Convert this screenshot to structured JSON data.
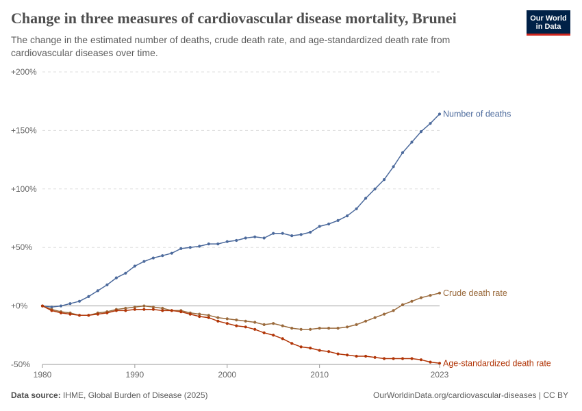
{
  "header": {
    "title": "Change in three measures of cardiovascular disease mortality, Brunei",
    "subtitle": "The change in the estimated number of deaths, crude death rate, and age-standardized death rate from cardiovascular diseases over time."
  },
  "logo": {
    "text": "Our World\nin Data",
    "background": "#002147",
    "accent": "#ce261e"
  },
  "footer": {
    "source_label": "Data source:",
    "source_text": "IHME, Global Burden of Disease (2025)",
    "url_license": "OurWorldinData.org/cardiovascular-diseases | CC BY"
  },
  "chart_data": {
    "type": "line",
    "title": "Change in three measures of cardiovascular disease mortality, Brunei",
    "xlabel": "",
    "ylabel": "",
    "xlim": [
      1980,
      2023
    ],
    "ylim": [
      -50,
      200
    ],
    "x_ticks": [
      {
        "value": 1980,
        "label": "1980"
      },
      {
        "value": 1990,
        "label": "1990"
      },
      {
        "value": 2000,
        "label": "2000"
      },
      {
        "value": 2010,
        "label": "2010"
      },
      {
        "value": 2023,
        "label": "2023"
      }
    ],
    "y_ticks": [
      {
        "value": -50,
        "label": "-50%"
      },
      {
        "value": 0,
        "label": "+0%"
      },
      {
        "value": 50,
        "label": "+50%"
      },
      {
        "value": 100,
        "label": "+100%"
      },
      {
        "value": 150,
        "label": "+150%"
      },
      {
        "value": 200,
        "label": "+200%"
      }
    ],
    "grid": "horizontal dashed",
    "legend": "line-end labels",
    "x": [
      1980,
      1981,
      1982,
      1983,
      1984,
      1985,
      1986,
      1987,
      1988,
      1989,
      1990,
      1991,
      1992,
      1993,
      1994,
      1995,
      1996,
      1997,
      1998,
      1999,
      2000,
      2001,
      2002,
      2003,
      2004,
      2005,
      2006,
      2007,
      2008,
      2009,
      2010,
      2011,
      2012,
      2013,
      2014,
      2015,
      2016,
      2017,
      2018,
      2019,
      2020,
      2021,
      2022,
      2023
    ],
    "series": [
      {
        "name": "Number of deaths",
        "color": "#4c6a9c",
        "values": [
          0,
          -1,
          0,
          2,
          4,
          8,
          13,
          18,
          24,
          28,
          34,
          38,
          41,
          43,
          45,
          49,
          50,
          51,
          53,
          53,
          55,
          56,
          58,
          59,
          58,
          62,
          62,
          60,
          61,
          63,
          68,
          70,
          73,
          77,
          83,
          92,
          100,
          108,
          119,
          131,
          140,
          149,
          156,
          164
        ]
      },
      {
        "name": "Crude death rate",
        "color": "#9a6a3c",
        "values": [
          0,
          -3,
          -5,
          -6,
          -8,
          -8,
          -6,
          -5,
          -3,
          -2,
          -1,
          0,
          -1,
          -2,
          -4,
          -4,
          -6,
          -7,
          -8,
          -10,
          -11,
          -12,
          -13,
          -14,
          -16,
          -15,
          -17,
          -19,
          -20,
          -20,
          -19,
          -19,
          -19,
          -18,
          -16,
          -13,
          -10,
          -7,
          -4,
          1,
          4,
          7,
          9,
          11
        ]
      },
      {
        "name": "Age-standardized death rate",
        "color": "#b13507",
        "values": [
          0,
          -4,
          -6,
          -7,
          -8,
          -8,
          -7,
          -6,
          -4,
          -4,
          -3,
          -3,
          -3,
          -4,
          -4,
          -5,
          -7,
          -9,
          -10,
          -13,
          -15,
          -17,
          -18,
          -20,
          -23,
          -25,
          -28,
          -32,
          -35,
          -36,
          -38,
          -39,
          -41,
          -42,
          -43,
          -43,
          -44,
          -45,
          -45,
          -45,
          -45,
          -46,
          -48,
          -49
        ]
      }
    ]
  }
}
